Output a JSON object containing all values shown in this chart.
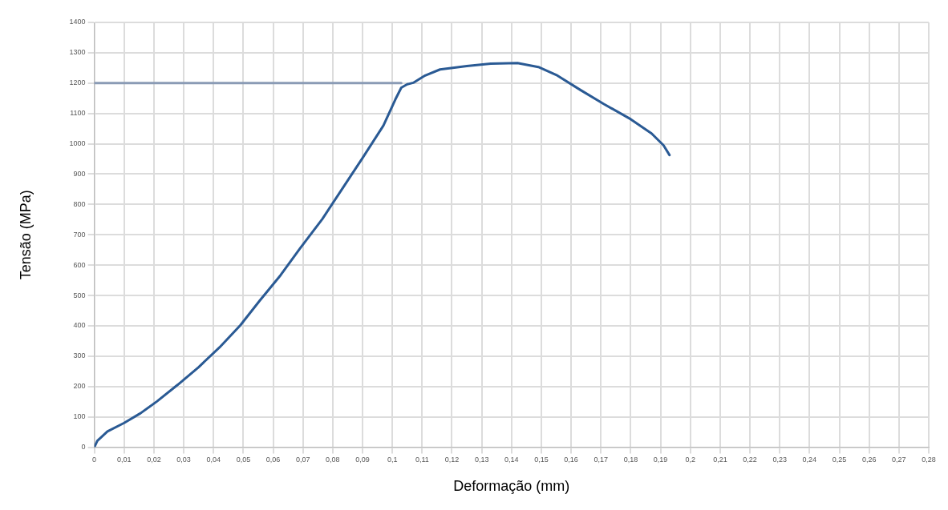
{
  "chart_data": {
    "type": "line",
    "xlabel": "Deformação (mm)",
    "ylabel": "Tensão (MPa)",
    "series": [
      {
        "color": "#8a9bb5",
        "x": [
          0,
          0.103
        ],
        "values": [
          1200,
          1200
        ]
      },
      {
        "color": "#2a5a94",
        "x": [
          0,
          0.001,
          0.0044,
          0.01,
          0.0155,
          0.021,
          0.028,
          0.035,
          0.042,
          0.049,
          0.0555,
          0.0625,
          0.069,
          0.0765,
          0.083,
          0.09,
          0.097,
          0.101,
          0.103,
          0.105,
          0.107,
          0.111,
          0.116,
          0.125,
          0.133,
          0.142,
          0.149,
          0.155,
          0.163,
          0.171,
          0.18,
          0.187,
          0.191,
          0.193
        ],
        "values": [
          0,
          21,
          52,
          80,
          112,
          151,
          206,
          264,
          329,
          402,
          483,
          567,
          655,
          752,
          849,
          953,
          1060,
          1146,
          1185,
          1196,
          1201,
          1225,
          1245,
          1256,
          1264,
          1266,
          1253,
          1227,
          1178,
          1131,
          1081,
          1034,
          995,
          963
        ]
      }
    ],
    "xlim": [
      0,
      0.28
    ],
    "xticks": [
      {
        "value": 0,
        "label": "0"
      },
      {
        "value": 0.01,
        "label": "0,01"
      },
      {
        "value": 0.02,
        "label": "0,02"
      },
      {
        "value": 0.03,
        "label": "0,03"
      },
      {
        "value": 0.04,
        "label": "0,04"
      },
      {
        "value": 0.05,
        "label": "0,05"
      },
      {
        "value": 0.06,
        "label": "0,06"
      },
      {
        "value": 0.07,
        "label": "0,07"
      },
      {
        "value": 0.08,
        "label": "0,08"
      },
      {
        "value": 0.09,
        "label": "0,09"
      },
      {
        "value": 0.1,
        "label": "0,1"
      },
      {
        "value": 0.11,
        "label": "0,11"
      },
      {
        "value": 0.12,
        "label": "0,12"
      },
      {
        "value": 0.13,
        "label": "0,13"
      },
      {
        "value": 0.14,
        "label": "0,14"
      },
      {
        "value": 0.15,
        "label": "0,15"
      },
      {
        "value": 0.16,
        "label": "0,16"
      },
      {
        "value": 0.17,
        "label": "0,17"
      },
      {
        "value": 0.18,
        "label": "0,18"
      },
      {
        "value": 0.19,
        "label": "0,19"
      },
      {
        "value": 0.2,
        "label": "0,2"
      },
      {
        "value": 0.21,
        "label": "0,21"
      },
      {
        "value": 0.22,
        "label": "0,22"
      },
      {
        "value": 0.23,
        "label": "0,23"
      },
      {
        "value": 0.24,
        "label": "0,24"
      },
      {
        "value": 0.25,
        "label": "0,25"
      },
      {
        "value": 0.26,
        "label": "0,26"
      },
      {
        "value": 0.27,
        "label": "0,27"
      },
      {
        "value": 0.28,
        "label": "0,28"
      }
    ],
    "ylim": [
      0,
      1400
    ],
    "yticks": [
      0,
      100,
      200,
      300,
      400,
      500,
      600,
      700,
      800,
      900,
      1000,
      1100,
      1200,
      1300,
      1400
    ],
    "grid": true,
    "legend": false,
    "marker": "none",
    "line_style": "solid"
  }
}
